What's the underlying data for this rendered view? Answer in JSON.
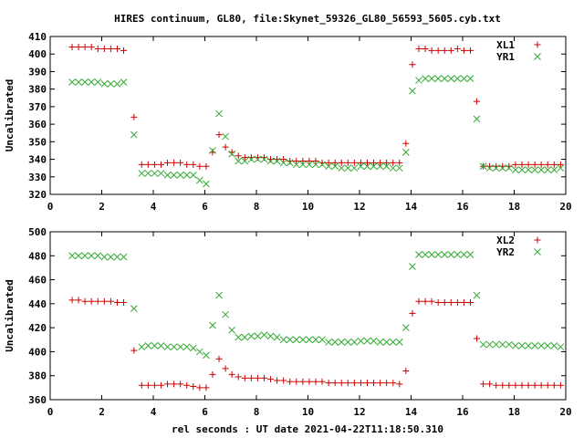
{
  "title": "HIRES continuum, GL80, file:Skynet_59326_GL80_56593_5605.cyb.txt",
  "xlabel": "rel seconds : UT date 2021-04-22T11:18:50.310",
  "colors": {
    "red": "#cc0000",
    "green": "#33aa33"
  },
  "chart_data": [
    {
      "type": "scatter",
      "ylabel": "Uncalibrated",
      "xlim": [
        0,
        20
      ],
      "ylim": [
        320,
        410
      ],
      "xticks": [
        0,
        2,
        4,
        6,
        8,
        10,
        12,
        14,
        16,
        18,
        20
      ],
      "yticks": [
        320,
        330,
        340,
        350,
        360,
        370,
        380,
        390,
        400,
        410
      ],
      "legend_position": "top-right",
      "series": [
        {
          "name": "XL1",
          "marker": "plus",
          "color": "#cc0000",
          "x": [
            0.85,
            1.1,
            1.35,
            1.6,
            1.85,
            2.1,
            2.35,
            2.6,
            2.85,
            3.25,
            3.55,
            3.8,
            4.05,
            4.3,
            4.55,
            4.8,
            5.05,
            5.3,
            5.55,
            5.8,
            6.05,
            6.3,
            6.55,
            6.8,
            7.05,
            7.3,
            7.55,
            7.8,
            8.05,
            8.3,
            8.55,
            8.8,
            9.05,
            9.3,
            9.55,
            9.8,
            10.05,
            10.3,
            10.55,
            10.8,
            11.05,
            11.3,
            11.55,
            11.8,
            12.05,
            12.3,
            12.55,
            12.8,
            13.05,
            13.3,
            13.55,
            13.8,
            14.05,
            14.3,
            14.55,
            14.8,
            15.05,
            15.3,
            15.55,
            15.8,
            16.05,
            16.3,
            16.55,
            16.8,
            17.05,
            17.3,
            17.55,
            17.8,
            18.05,
            18.3,
            18.55,
            18.8,
            19.05,
            19.3,
            19.55,
            19.8
          ],
          "y": [
            404,
            404,
            404,
            404,
            403,
            403,
            403,
            403,
            402,
            364,
            337,
            337,
            337,
            337,
            338,
            338,
            338,
            337,
            337,
            336,
            336,
            344,
            354,
            347,
            344,
            342,
            341,
            341,
            341,
            341,
            340,
            340,
            340,
            339,
            339,
            339,
            339,
            339,
            338,
            338,
            338,
            338,
            338,
            338,
            338,
            338,
            338,
            338,
            338,
            338,
            338,
            349,
            394,
            403,
            403,
            402,
            402,
            402,
            402,
            403,
            402,
            402,
            373,
            336,
            336,
            336,
            336,
            336,
            337,
            337,
            337,
            337,
            337,
            337,
            337,
            337
          ]
        },
        {
          "name": "YR1",
          "marker": "cross",
          "color": "#33aa33",
          "x": [
            0.85,
            1.1,
            1.35,
            1.6,
            1.85,
            2.1,
            2.35,
            2.6,
            2.85,
            3.25,
            3.55,
            3.8,
            4.05,
            4.3,
            4.55,
            4.8,
            5.05,
            5.3,
            5.55,
            5.8,
            6.05,
            6.3,
            6.55,
            6.8,
            7.05,
            7.3,
            7.55,
            7.8,
            8.05,
            8.3,
            8.55,
            8.8,
            9.05,
            9.3,
            9.55,
            9.8,
            10.05,
            10.3,
            10.55,
            10.8,
            11.05,
            11.3,
            11.55,
            11.8,
            12.05,
            12.3,
            12.55,
            12.8,
            13.05,
            13.3,
            13.55,
            13.8,
            14.05,
            14.3,
            14.55,
            14.8,
            15.05,
            15.3,
            15.55,
            15.8,
            16.05,
            16.3,
            16.55,
            16.8,
            17.05,
            17.3,
            17.55,
            17.8,
            18.05,
            18.3,
            18.55,
            18.8,
            19.05,
            19.3,
            19.55,
            19.8
          ],
          "y": [
            384,
            384,
            384,
            384,
            384,
            383,
            383,
            383,
            384,
            354,
            332,
            332,
            332,
            332,
            331,
            331,
            331,
            331,
            331,
            328,
            326,
            345,
            366,
            353,
            343,
            339,
            339,
            340,
            340,
            340,
            339,
            339,
            338,
            338,
            337,
            337,
            337,
            337,
            337,
            336,
            336,
            335,
            335,
            335,
            336,
            336,
            336,
            336,
            336,
            335,
            335,
            344,
            379,
            385,
            386,
            386,
            386,
            386,
            386,
            386,
            386,
            386,
            363,
            336,
            335,
            335,
            335,
            335,
            334,
            334,
            334,
            334,
            334,
            334,
            334,
            335
          ]
        }
      ]
    },
    {
      "type": "scatter",
      "ylabel": "Uncalibrated",
      "xlim": [
        0,
        20
      ],
      "ylim": [
        360,
        500
      ],
      "xticks": [
        0,
        2,
        4,
        6,
        8,
        10,
        12,
        14,
        16,
        18,
        20
      ],
      "yticks": [
        360,
        380,
        400,
        420,
        440,
        460,
        480,
        500
      ],
      "legend_position": "top-right",
      "series": [
        {
          "name": "XL2",
          "marker": "plus",
          "color": "#cc0000",
          "x": [
            0.85,
            1.1,
            1.35,
            1.6,
            1.85,
            2.1,
            2.35,
            2.6,
            2.85,
            3.25,
            3.55,
            3.8,
            4.05,
            4.3,
            4.55,
            4.8,
            5.05,
            5.3,
            5.55,
            5.8,
            6.05,
            6.3,
            6.55,
            6.8,
            7.05,
            7.3,
            7.55,
            7.8,
            8.05,
            8.3,
            8.55,
            8.8,
            9.05,
            9.3,
            9.55,
            9.8,
            10.05,
            10.3,
            10.55,
            10.8,
            11.05,
            11.3,
            11.55,
            11.8,
            12.05,
            12.3,
            12.55,
            12.8,
            13.05,
            13.3,
            13.55,
            13.8,
            14.05,
            14.3,
            14.55,
            14.8,
            15.05,
            15.3,
            15.55,
            15.8,
            16.05,
            16.3,
            16.55,
            16.8,
            17.05,
            17.3,
            17.55,
            17.8,
            18.05,
            18.3,
            18.55,
            18.8,
            19.05,
            19.3,
            19.55,
            19.8
          ],
          "y": [
            443,
            443,
            442,
            442,
            442,
            442,
            442,
            441,
            441,
            401,
            372,
            372,
            372,
            372,
            373,
            373,
            373,
            372,
            371,
            370,
            370,
            381,
            394,
            386,
            381,
            379,
            378,
            378,
            378,
            378,
            377,
            376,
            376,
            375,
            375,
            375,
            375,
            375,
            375,
            374,
            374,
            374,
            374,
            374,
            374,
            374,
            374,
            374,
            374,
            374,
            373,
            384,
            432,
            442,
            442,
            442,
            441,
            441,
            441,
            441,
            441,
            441,
            411,
            373,
            373,
            372,
            372,
            372,
            372,
            372,
            372,
            372,
            372,
            372,
            372,
            372
          ]
        },
        {
          "name": "YR2",
          "marker": "cross",
          "color": "#33aa33",
          "x": [
            0.85,
            1.1,
            1.35,
            1.6,
            1.85,
            2.1,
            2.35,
            2.6,
            2.85,
            3.25,
            3.55,
            3.8,
            4.05,
            4.3,
            4.55,
            4.8,
            5.05,
            5.3,
            5.55,
            5.8,
            6.05,
            6.3,
            6.55,
            6.8,
            7.05,
            7.3,
            7.55,
            7.8,
            8.05,
            8.3,
            8.55,
            8.8,
            9.05,
            9.3,
            9.55,
            9.8,
            10.05,
            10.3,
            10.55,
            10.8,
            11.05,
            11.3,
            11.55,
            11.8,
            12.05,
            12.3,
            12.55,
            12.8,
            13.05,
            13.3,
            13.55,
            13.8,
            14.05,
            14.3,
            14.55,
            14.8,
            15.05,
            15.3,
            15.55,
            15.8,
            16.05,
            16.3,
            16.55,
            16.8,
            17.05,
            17.3,
            17.55,
            17.8,
            18.05,
            18.3,
            18.55,
            18.8,
            19.05,
            19.3,
            19.55,
            19.8
          ],
          "y": [
            480,
            480,
            480,
            480,
            480,
            479,
            479,
            479,
            479,
            436,
            404,
            405,
            405,
            405,
            404,
            404,
            404,
            404,
            403,
            400,
            397,
            422,
            447,
            431,
            418,
            412,
            412,
            413,
            413,
            414,
            413,
            412,
            410,
            410,
            410,
            410,
            410,
            410,
            410,
            408,
            408,
            408,
            408,
            408,
            409,
            409,
            409,
            408,
            408,
            408,
            408,
            420,
            471,
            481,
            481,
            481,
            481,
            481,
            481,
            481,
            481,
            481,
            447,
            406,
            406,
            406,
            406,
            406,
            405,
            405,
            405,
            405,
            405,
            405,
            405,
            404
          ]
        }
      ]
    }
  ]
}
